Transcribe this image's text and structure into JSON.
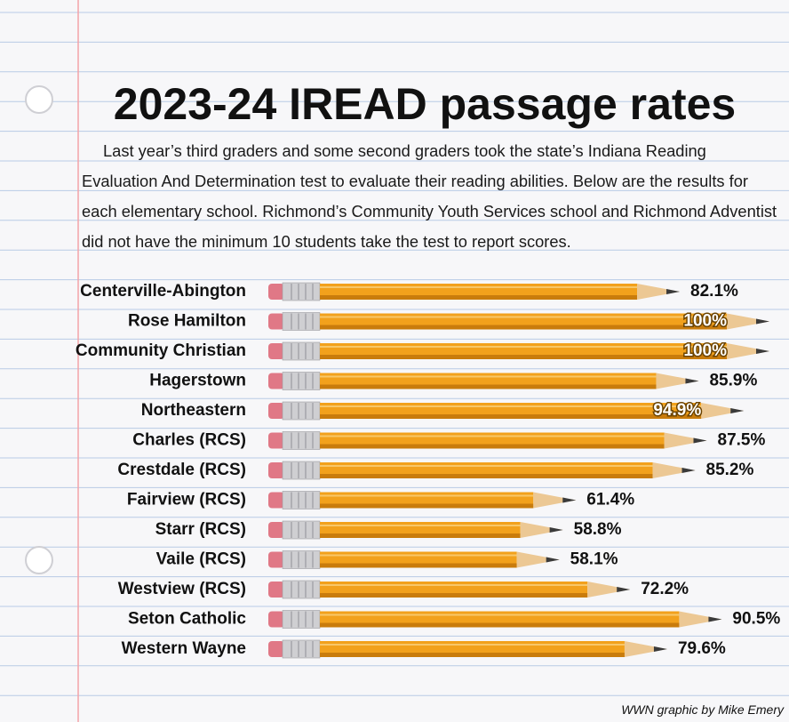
{
  "chart_data": {
    "type": "bar",
    "orientation": "horizontal",
    "title": "2023-24 IREAD passage rates",
    "subtitle": "Last year’s third graders and some second graders took the state’s Indiana Reading Evaluation And Determination test to evaluate their reading abilities. Below are the results for each elementary school. Richmond’s Community Youth Services school and Richmond Adventist did not have the minimum 10 students take the test to report scores.",
    "categories": [
      "Centerville-Abington",
      "Rose Hamilton",
      "Community Christian",
      "Hagerstown",
      "Northeastern",
      "Charles (RCS)",
      "Crestdale (RCS)",
      "Fairview (RCS)",
      "Starr (RCS)",
      "Vaile (RCS)",
      "Westview (RCS)",
      "Seton Catholic",
      "Western Wayne"
    ],
    "values": [
      82.1,
      100,
      100,
      85.9,
      94.9,
      87.5,
      85.2,
      61.4,
      58.8,
      58.1,
      72.2,
      90.5,
      79.6
    ],
    "value_labels": [
      "82.1%",
      "100%",
      "100%",
      "85.9%",
      "94.9%",
      "87.5%",
      "85.2%",
      "61.4%",
      "58.8%",
      "58.1%",
      "72.2%",
      "90.5%",
      "79.6%"
    ],
    "color": "#f2a11c",
    "credit": "WWN graphic by Mike Emery"
  }
}
